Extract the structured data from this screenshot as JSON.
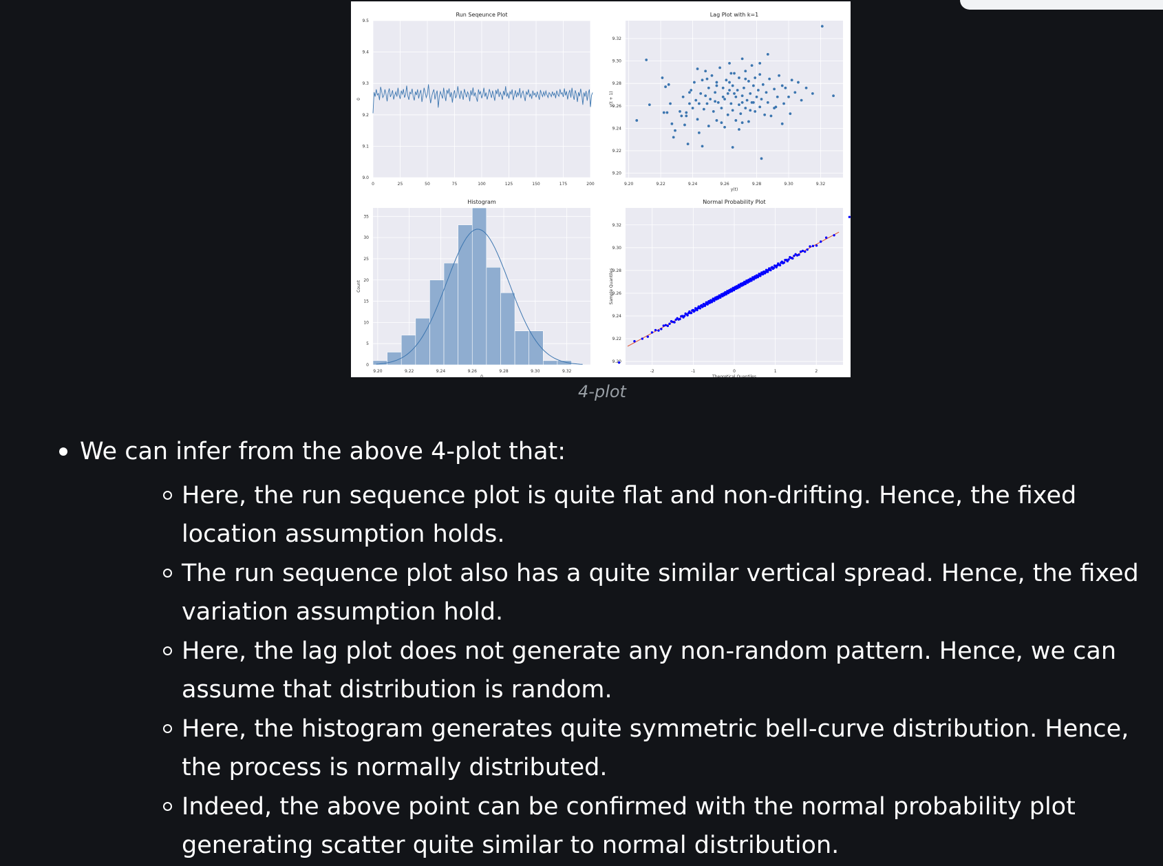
{
  "figure": {
    "caption": "4-plot"
  },
  "chart_data": [
    {
      "type": "line",
      "title": "Run Seqeunce Plot",
      "xlabel": "",
      "ylabel": "0",
      "xlim": [
        0,
        200
      ],
      "ylim": [
        9.0,
        9.5
      ],
      "xticks": [
        "0",
        "25",
        "50",
        "75",
        "100",
        "125",
        "150",
        "175",
        "200"
      ],
      "yticks": [
        "9.0",
        "9.1",
        "9.2",
        "9.3",
        "9.4",
        "9.5"
      ],
      "series": [
        {
          "values": [
            9.205,
            9.272,
            9.258,
            9.281,
            9.263,
            9.268,
            9.247,
            9.289,
            9.274,
            9.255,
            9.262,
            9.281,
            9.266,
            9.243,
            9.271,
            9.284,
            9.257,
            9.266,
            9.278,
            9.249,
            9.262,
            9.273,
            9.258,
            9.286,
            9.264,
            9.251,
            9.277,
            9.266,
            9.282,
            9.255,
            9.264,
            9.293,
            9.261,
            9.248,
            9.272,
            9.267,
            9.283,
            9.258,
            9.246,
            9.274,
            9.263,
            9.281,
            9.252,
            9.268,
            9.279,
            9.241,
            9.262,
            9.286,
            9.271,
            9.255,
            9.266,
            9.297,
            9.264,
            9.237,
            9.258,
            9.272,
            9.281,
            9.249,
            9.266,
            9.277,
            9.223,
            9.258,
            9.274,
            9.263,
            9.252,
            9.286,
            9.261,
            9.244,
            9.279,
            9.268,
            9.284,
            9.256,
            9.272,
            9.239,
            9.265,
            9.278,
            9.253,
            9.262,
            9.291,
            9.268,
            9.251,
            9.277,
            9.263,
            9.248,
            9.282,
            9.269,
            9.256,
            9.273,
            9.265,
            9.243,
            9.278,
            9.262,
            9.287,
            9.259,
            9.271,
            9.255,
            9.242,
            9.281,
            9.266,
            9.274,
            9.253,
            9.264,
            9.286,
            9.258,
            9.271,
            9.249,
            9.263,
            9.282,
            9.268,
            9.254,
            9.277,
            9.261,
            9.245,
            9.279,
            9.266,
            9.283,
            9.257,
            9.272,
            9.263,
            9.248,
            9.276,
            9.262,
            9.291,
            9.258,
            9.269,
            9.252,
            9.274,
            9.266,
            9.281,
            9.247,
            9.263,
            9.278,
            9.256,
            9.271,
            9.262,
            9.285,
            9.253,
            9.268,
            9.276,
            9.259,
            9.244,
            9.273,
            9.265,
            9.281,
            9.258,
            9.266,
            9.251,
            9.277,
            9.263,
            9.269,
            9.256,
            9.274,
            9.262,
            9.248,
            9.279,
            9.267,
            9.258,
            9.273,
            9.261,
            9.276,
            9.264,
            9.255,
            9.271,
            9.266,
            9.258,
            9.274,
            9.262,
            9.269,
            9.253,
            9.277,
            9.265,
            9.259,
            9.282,
            9.266,
            9.271,
            9.257,
            9.284,
            9.262,
            9.275,
            9.249,
            9.268,
            9.279,
            9.255,
            9.286,
            9.263,
            9.248,
            9.278,
            9.266,
            9.241,
            9.272,
            9.259,
            9.283,
            9.264,
            9.232,
            9.271,
            9.258,
            9.276,
            9.245,
            9.268,
            9.281,
            9.225,
            9.262,
            9.271
          ]
        }
      ]
    },
    {
      "type": "scatter",
      "title": "Lag Plot with k=1",
      "xlabel": "y(t)",
      "ylabel": "y(t + 1)",
      "xlim": [
        9.198,
        9.334
      ],
      "ylim": [
        9.196,
        9.336
      ],
      "xticks": [
        "9.20",
        "9.22",
        "9.24",
        "9.26",
        "9.28",
        "9.30",
        "9.32"
      ],
      "yticks": [
        "9.20",
        "9.22",
        "9.24",
        "9.26",
        "9.28",
        "9.30",
        "9.32"
      ],
      "points": [
        [
          9.205,
          9.247
        ],
        [
          9.211,
          9.301
        ],
        [
          9.213,
          9.261
        ],
        [
          9.221,
          9.285
        ],
        [
          9.223,
          9.277
        ],
        [
          9.222,
          9.254
        ],
        [
          9.224,
          9.254
        ],
        [
          9.225,
          9.279
        ],
        [
          9.226,
          9.262
        ],
        [
          9.227,
          9.244
        ],
        [
          9.228,
          9.232
        ],
        [
          9.229,
          9.238
        ],
        [
          9.232,
          9.255
        ],
        [
          9.233,
          9.251
        ],
        [
          9.234,
          9.268
        ],
        [
          9.235,
          9.243
        ],
        [
          9.236,
          9.251
        ],
        [
          9.237,
          9.226
        ],
        [
          9.238,
          9.262
        ],
        [
          9.239,
          9.274
        ],
        [
          9.24,
          9.258
        ],
        [
          9.241,
          9.281
        ],
        [
          9.242,
          9.265
        ],
        [
          9.243,
          9.248
        ],
        [
          9.244,
          9.236
        ],
        [
          9.245,
          9.271
        ],
        [
          9.246,
          9.283
        ],
        [
          9.247,
          9.257
        ],
        [
          9.248,
          9.291
        ],
        [
          9.249,
          9.262
        ],
        [
          9.25,
          9.276
        ],
        [
          9.25,
          9.242
        ],
        [
          9.251,
          9.266
        ],
        [
          9.252,
          9.287
        ],
        [
          9.253,
          9.255
        ],
        [
          9.254,
          9.272
        ],
        [
          9.255,
          9.247
        ],
        [
          9.255,
          9.281
        ],
        [
          9.256,
          9.263
        ],
        [
          9.257,
          9.294
        ],
        [
          9.258,
          9.258
        ],
        [
          9.259,
          9.276
        ],
        [
          9.26,
          9.241
        ],
        [
          9.26,
          9.266
        ],
        [
          9.261,
          9.283
        ],
        [
          9.262,
          9.252
        ],
        [
          9.262,
          9.271
        ],
        [
          9.263,
          9.298
        ],
        [
          9.264,
          9.262
        ],
        [
          9.265,
          9.278
        ],
        [
          9.265,
          9.256
        ],
        [
          9.266,
          9.289
        ],
        [
          9.267,
          9.268
        ],
        [
          9.267,
          9.247
        ],
        [
          9.268,
          9.274
        ],
        [
          9.269,
          9.261
        ],
        [
          9.269,
          9.285
        ],
        [
          9.27,
          9.253
        ],
        [
          9.271,
          9.302
        ],
        [
          9.271,
          9.269
        ],
        [
          9.272,
          9.276
        ],
        [
          9.273,
          9.258
        ],
        [
          9.273,
          9.291
        ],
        [
          9.274,
          9.265
        ],
        [
          9.275,
          9.282
        ],
        [
          9.275,
          9.246
        ],
        [
          9.276,
          9.271
        ],
        [
          9.277,
          9.263
        ],
        [
          9.277,
          9.296
        ],
        [
          9.278,
          9.278
        ],
        [
          9.279,
          9.255
        ],
        [
          9.279,
          9.285
        ],
        [
          9.28,
          9.268
        ],
        [
          9.281,
          9.274
        ],
        [
          9.282,
          9.259
        ],
        [
          9.282,
          9.288
        ],
        [
          9.283,
          9.266
        ],
        [
          9.284,
          9.279
        ],
        [
          9.285,
          9.252
        ],
        [
          9.286,
          9.272
        ],
        [
          9.287,
          9.263
        ],
        [
          9.288,
          9.284
        ],
        [
          9.289,
          9.251
        ],
        [
          9.291,
          9.275
        ],
        [
          9.292,
          9.259
        ],
        [
          9.293,
          9.268
        ],
        [
          9.294,
          9.287
        ],
        [
          9.296,
          9.244
        ],
        [
          9.297,
          9.262
        ],
        [
          9.298,
          9.276
        ],
        [
          9.3,
          9.268
        ],
        [
          9.301,
          9.253
        ],
        [
          9.302,
          9.283
        ],
        [
          9.304,
          9.272
        ],
        [
          9.306,
          9.281
        ],
        [
          9.308,
          9.265
        ],
        [
          9.311,
          9.276
        ],
        [
          9.315,
          9.271
        ],
        [
          9.321,
          9.331
        ],
        [
          9.328,
          9.269
        ],
        [
          9.283,
          9.213
        ],
        [
          9.246,
          9.224
        ],
        [
          9.265,
          9.223
        ],
        [
          9.269,
          9.239
        ],
        [
          9.254,
          9.264
        ],
        [
          9.258,
          9.245
        ],
        [
          9.243,
          9.293
        ],
        [
          9.249,
          9.284
        ],
        [
          9.263,
          9.281
        ],
        [
          9.271,
          9.263
        ],
        [
          9.238,
          9.272
        ],
        [
          9.276,
          9.256
        ],
        [
          9.282,
          9.298
        ],
        [
          9.287,
          9.306
        ],
        [
          9.263,
          9.274
        ],
        [
          9.259,
          9.268
        ],
        [
          9.273,
          9.284
        ],
        [
          9.278,
          9.263
        ],
        [
          9.266,
          9.271
        ],
        [
          9.255,
          9.278
        ],
        [
          9.244,
          9.262
        ],
        [
          9.236,
          9.254
        ],
        [
          9.291,
          9.258
        ],
        [
          9.296,
          9.278
        ],
        [
          9.248,
          9.269
        ],
        [
          9.264,
          9.289
        ],
        [
          9.271,
          9.245
        ]
      ]
    },
    {
      "type": "bar",
      "title": "Histogram",
      "xlabel": "0",
      "ylabel": "Count",
      "xlim": [
        9.197,
        9.335
      ],
      "ylim": [
        0,
        37
      ],
      "xticks": [
        "9.20",
        "9.22",
        "9.24",
        "9.26",
        "9.28",
        "9.30",
        "9.32"
      ],
      "yticks": [
        "0",
        "5",
        "10",
        "15",
        "20",
        "25",
        "30",
        "35"
      ],
      "bin_edges": [
        9.197,
        9.206,
        9.215,
        9.224,
        9.233,
        9.242,
        9.251,
        9.26,
        9.269,
        9.278,
        9.287,
        9.296,
        9.305,
        9.314,
        9.323,
        9.332
      ],
      "values": [
        1,
        3,
        7,
        11,
        20,
        24,
        33,
        37,
        23,
        17,
        8,
        8,
        1,
        1,
        0
      ],
      "kde": true
    },
    {
      "type": "scatter",
      "title": "Normal Probability Plot",
      "xlabel": "Theoretical Quantiles",
      "ylabel": "Sample Quantiles",
      "xlim": [
        -2.65,
        2.65
      ],
      "ylim": [
        9.197,
        9.335
      ],
      "xticks": [
        "-2",
        "-1",
        "0",
        "1",
        "2"
      ],
      "yticks": [
        "9.20",
        "9.22",
        "9.24",
        "9.26",
        "9.28",
        "9.30",
        "9.32"
      ],
      "fit_line": {
        "slope": 0.0195,
        "intercept": 9.264
      },
      "n_points": 200
    }
  ],
  "content": {
    "intro": "We can infer from the above 4-plot that:",
    "points": [
      "Here, the run sequence plot is quite flat and non-drifting. Hence, the fixed location assumption holds.",
      "The run sequence plot also has a quite similar vertical spread. Hence, the fixed variation assumption hold.",
      "Here, the lag plot does not generate any non-random pattern. Hence, we can assume that distribution is random.",
      "Here, the histogram generates quite symmetric bell-curve distribution. Hence, the process is normally distributed.",
      "Indeed, the above point can be confirmed with the normal probability plot generating scatter quite similar to normal distribution."
    ]
  },
  "colors": {
    "background": "#121418",
    "plot_bg": "#eaeaf2",
    "series": "#3b75af",
    "hist_bar": "#8fadd0",
    "qq_points": "#0000ff",
    "qq_line": "#e0502a"
  }
}
